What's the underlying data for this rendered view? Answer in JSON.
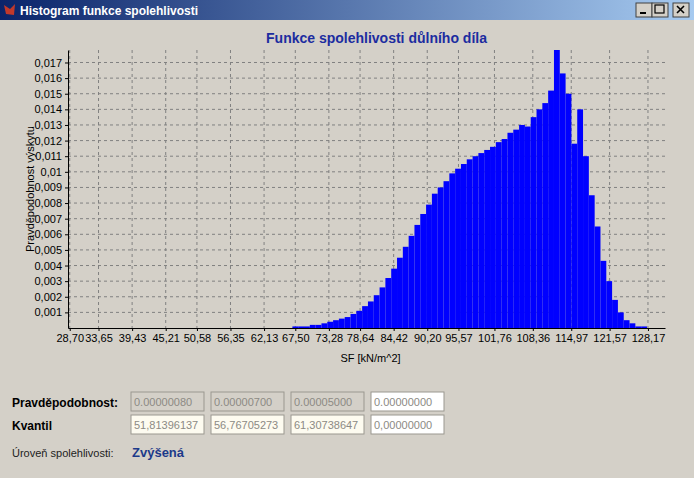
{
  "window": {
    "title": "Histogram funkce spolehlivosti"
  },
  "chart_data": {
    "type": "histogram",
    "title": "Funkce spolehlivosti důlního díla",
    "x_label": "SF [kN/m^2]",
    "y_label": "Pravděpodobnost výskytu",
    "color": "#0000ff",
    "grid": true,
    "bins": [
      67,
      68,
      69,
      70,
      71,
      72,
      73,
      74,
      75,
      76,
      77,
      78,
      79,
      80,
      81,
      82,
      83,
      84,
      85,
      86,
      87,
      88,
      89,
      90,
      91,
      92,
      93,
      94,
      95,
      96,
      97,
      98,
      99,
      100,
      101,
      102,
      103,
      104,
      105,
      106,
      107,
      108,
      109,
      110,
      111,
      112,
      113,
      114,
      115,
      116,
      117,
      118,
      119,
      120,
      121,
      122,
      123,
      124,
      125,
      126,
      127,
      128
    ],
    "values": [
      0.0001,
      0.0001,
      0.0001,
      0.0002,
      0.0002,
      0.0003,
      0.0004,
      0.0005,
      0.0006,
      0.0007,
      0.0009,
      0.0011,
      0.0014,
      0.0017,
      0.0021,
      0.0026,
      0.0032,
      0.0038,
      0.0045,
      0.0052,
      0.0059,
      0.0066,
      0.0073,
      0.0079,
      0.0086,
      0.009,
      0.0094,
      0.0099,
      0.0102,
      0.0105,
      0.0108,
      0.011,
      0.0112,
      0.0114,
      0.0116,
      0.0119,
      0.0121,
      0.0125,
      0.0127,
      0.013,
      0.0129,
      0.0135,
      0.014,
      0.0144,
      0.0152,
      0.0178,
      0.0163,
      0.015,
      0.0118,
      0.014,
      0.011,
      0.0085,
      0.0065,
      0.0043,
      0.003,
      0.0018,
      0.001,
      0.0005,
      0.0003,
      0.0001,
      0.0001
    ],
    "xlim": [
      28.4,
      131.1
    ],
    "xticks": [
      {
        "value": 28.7,
        "label": "28,70"
      },
      {
        "value": 33.65,
        "label": "33,65"
      },
      {
        "value": 39.43,
        "label": "39,43"
      },
      {
        "value": 45.21,
        "label": "45,21"
      },
      {
        "value": 50.58,
        "label": "50,58"
      },
      {
        "value": 56.35,
        "label": "56,35"
      },
      {
        "value": 62.13,
        "label": "62,13"
      },
      {
        "value": 67.5,
        "label": "67,50"
      },
      {
        "value": 73.28,
        "label": "73,28"
      },
      {
        "value": 78.64,
        "label": "78,64"
      },
      {
        "value": 84.42,
        "label": "84,42"
      },
      {
        "value": 90.2,
        "label": "90,20"
      },
      {
        "value": 95.57,
        "label": "95,57"
      },
      {
        "value": 101.76,
        "label": "101,76"
      },
      {
        "value": 108.36,
        "label": "108,36"
      },
      {
        "value": 114.97,
        "label": "114,97"
      },
      {
        "value": 121.57,
        "label": "121,57"
      },
      {
        "value": 128.17,
        "label": "128,17"
      }
    ],
    "ylim": [
      0,
      0.0178
    ],
    "yticks": [
      {
        "value": 0.001,
        "label": "0,001"
      },
      {
        "value": 0.002,
        "label": "0,002"
      },
      {
        "value": 0.003,
        "label": "0,003"
      },
      {
        "value": 0.004,
        "label": "0,004"
      },
      {
        "value": 0.005,
        "label": "0,005"
      },
      {
        "value": 0.006,
        "label": "0,006"
      },
      {
        "value": 0.007,
        "label": "0,007"
      },
      {
        "value": 0.008,
        "label": "0,008"
      },
      {
        "value": 0.009,
        "label": "0,009"
      },
      {
        "value": 0.01,
        "label": "0,01"
      },
      {
        "value": 0.011,
        "label": "0,011"
      },
      {
        "value": 0.012,
        "label": "0,012"
      },
      {
        "value": 0.013,
        "label": "0,013"
      },
      {
        "value": 0.014,
        "label": "0,014"
      },
      {
        "value": 0.015,
        "label": "0,015"
      },
      {
        "value": 0.016,
        "label": "0,016"
      },
      {
        "value": 0.017,
        "label": "0,017"
      }
    ]
  },
  "form": {
    "probability_label": "Pravděpodobnost:",
    "probabilities": [
      "0.00000080",
      "0.00000700",
      "0.00005000",
      "0.00000000"
    ],
    "quantile_label": "Kvantil",
    "quantiles": [
      "51,81396137",
      "56,76705273",
      "61,30738647",
      "0,00000000"
    ],
    "level_label": "Úroveň spolehlivosti:",
    "level": "Zvýšená"
  }
}
